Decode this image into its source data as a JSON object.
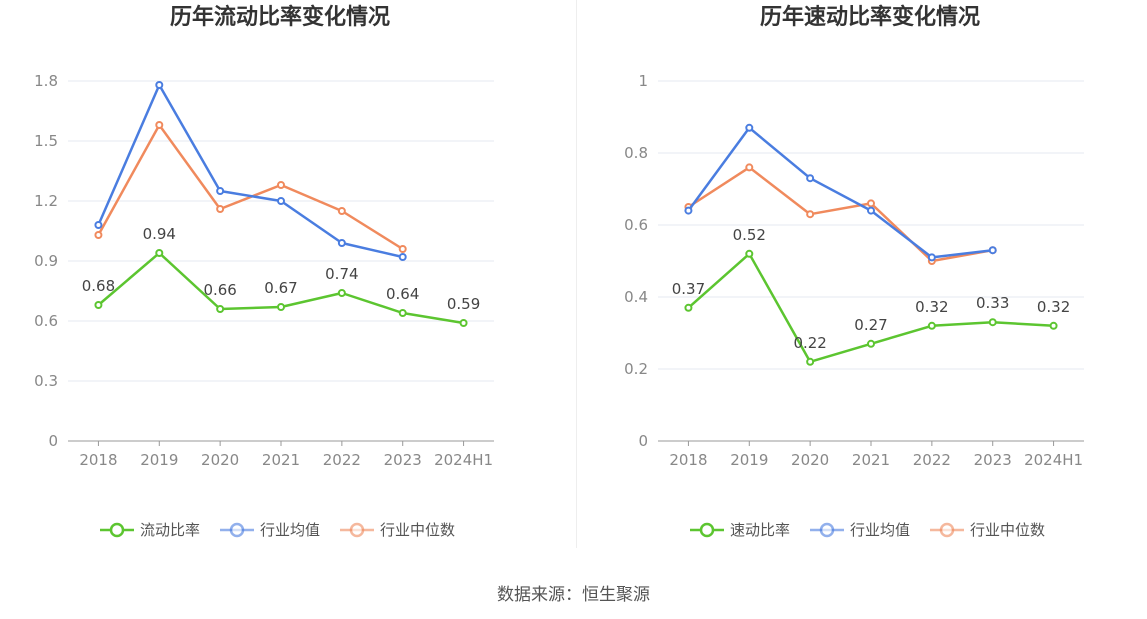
{
  "source_text": "数据来源：恒生聚源",
  "colors": {
    "primary": "#5cc530",
    "avg": "#4a7de0",
    "median": "#f08a5d",
    "grid": "#e6e9f2",
    "axis": "#999999"
  },
  "chart_data": [
    {
      "type": "line",
      "title": "历年流动比率变化情况",
      "categories": [
        "2018",
        "2019",
        "2020",
        "2021",
        "2022",
        "2023",
        "2024H1"
      ],
      "ylim": [
        0,
        1.8
      ],
      "yticks": [
        0,
        0.3,
        0.6,
        0.9,
        1.2,
        1.5,
        1.8
      ],
      "ytick_labels": [
        "0",
        "0.3",
        "0.6",
        "0.9",
        "1.2",
        "1.5",
        "1.8"
      ],
      "grid": true,
      "legend_position": "bottom",
      "series": [
        {
          "name": "流动比率",
          "color": "#5cc530",
          "labels": true,
          "values": [
            0.68,
            0.94,
            0.66,
            0.67,
            0.74,
            0.64,
            0.59
          ],
          "value_labels": [
            "0.68",
            "0.94",
            "0.66",
            "0.67",
            "0.74",
            "0.64",
            "0.59"
          ]
        },
        {
          "name": "行业均值",
          "color": "#4a7de0",
          "labels": false,
          "values": [
            1.08,
            1.78,
            1.25,
            1.2,
            0.99,
            0.92,
            null
          ]
        },
        {
          "name": "行业中位数",
          "color": "#f08a5d",
          "labels": false,
          "values": [
            1.03,
            1.58,
            1.16,
            1.28,
            1.15,
            0.96,
            null
          ]
        }
      ]
    },
    {
      "type": "line",
      "title": "历年速动比率变化情况",
      "categories": [
        "2018",
        "2019",
        "2020",
        "2021",
        "2022",
        "2023",
        "2024H1"
      ],
      "ylim": [
        0,
        1
      ],
      "yticks": [
        0,
        0.2,
        0.4,
        0.6,
        0.8,
        1
      ],
      "ytick_labels": [
        "0",
        "0.2",
        "0.4",
        "0.6",
        "0.8",
        "1"
      ],
      "grid": true,
      "legend_position": "bottom",
      "series": [
        {
          "name": "速动比率",
          "color": "#5cc530",
          "labels": true,
          "values": [
            0.37,
            0.52,
            0.22,
            0.27,
            0.32,
            0.33,
            0.32
          ],
          "value_labels": [
            "0.37",
            "0.52",
            "0.22",
            "0.27",
            "0.32",
            "0.33",
            "0.32"
          ]
        },
        {
          "name": "行业均值",
          "color": "#4a7de0",
          "labels": false,
          "values": [
            0.64,
            0.87,
            0.73,
            0.64,
            0.51,
            0.53,
            null
          ]
        },
        {
          "name": "行业中位数",
          "color": "#f08a5d",
          "labels": false,
          "values": [
            0.65,
            0.76,
            0.63,
            0.66,
            0.5,
            0.53,
            null
          ]
        }
      ]
    }
  ]
}
